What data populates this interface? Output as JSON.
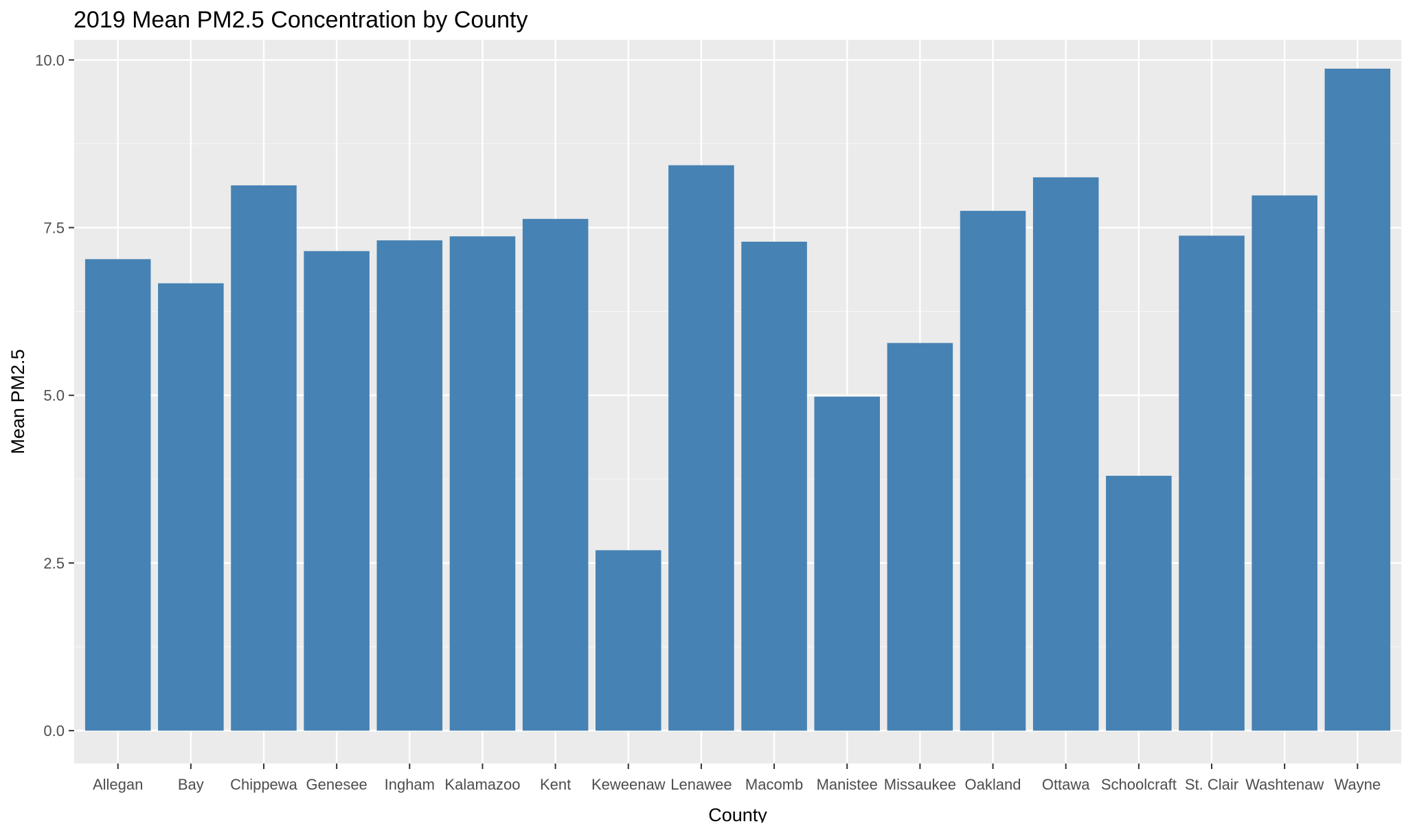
{
  "chart_data": {
    "type": "bar",
    "title": "2019 Mean PM2.5 Concentration by County",
    "xlabel": "County",
    "ylabel": "Mean PM2.5",
    "categories": [
      "Allegan",
      "Bay",
      "Chippewa",
      "Genesee",
      "Ingham",
      "Kalamazoo",
      "Kent",
      "Keweenaw",
      "Lenawee",
      "Macomb",
      "Manistee",
      "Missaukee",
      "Oakland",
      "Ottawa",
      "Schoolcraft",
      "St. Clair",
      "Washtenaw",
      "Wayne"
    ],
    "values": [
      7.03,
      6.67,
      8.13,
      7.15,
      7.31,
      7.37,
      7.63,
      2.69,
      8.43,
      7.29,
      4.98,
      5.78,
      7.75,
      8.25,
      3.8,
      7.38,
      7.98,
      9.87
    ],
    "ylim": [
      -0.49,
      10.3
    ],
    "yticks": [
      0,
      2.5,
      5,
      7.5,
      10
    ],
    "ytick_labels": [
      "0.0",
      "2.5",
      "5.0",
      "7.5",
      "10.0"
    ],
    "grid": true,
    "colors": {
      "bar": "#4682b4",
      "panel": "#ebebeb",
      "grid_major": "#ffffff",
      "grid_minor": "#f5f5f5",
      "tick": "#333333"
    }
  }
}
